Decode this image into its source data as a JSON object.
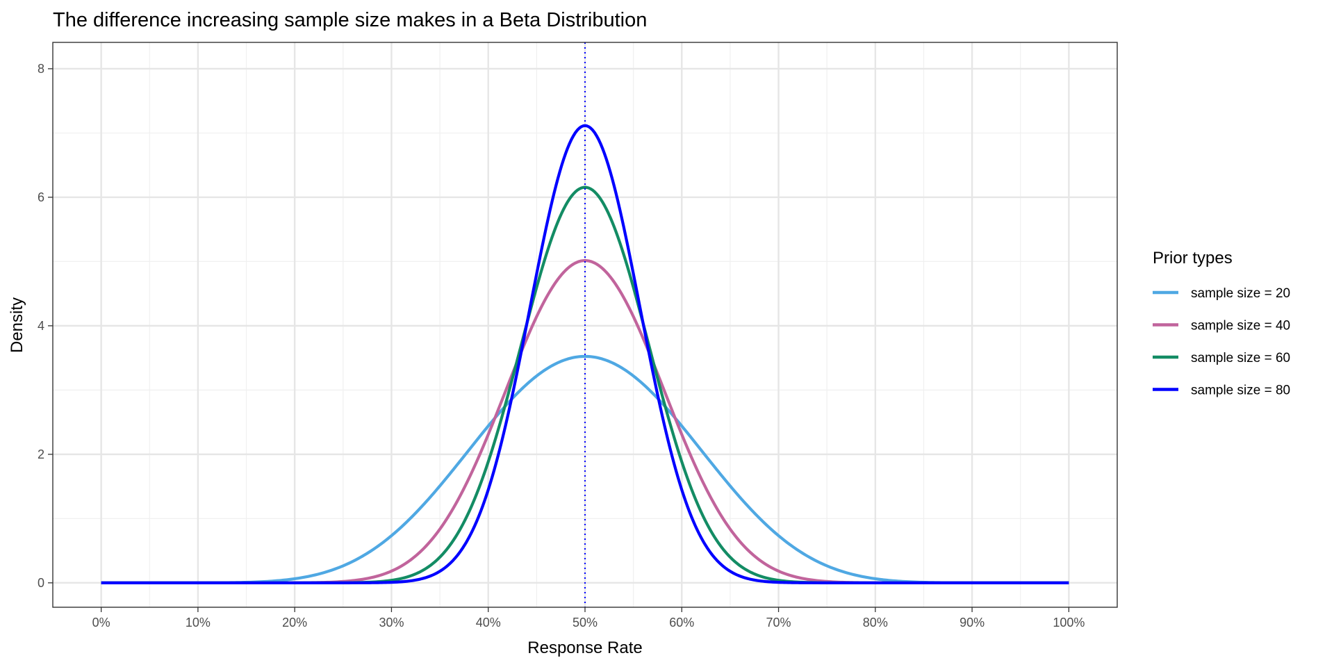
{
  "chart_data": {
    "type": "line",
    "title": "The difference increasing sample size makes in a Beta Distribution",
    "xlabel": "Response Rate",
    "ylabel": "Density",
    "xlim": [
      -0.05,
      1.05
    ],
    "ylim": [
      -0.38,
      8.41
    ],
    "x_ticks": [
      0,
      0.1,
      0.2,
      0.3,
      0.4,
      0.5,
      0.6,
      0.7,
      0.8,
      0.9,
      1.0
    ],
    "x_tick_labels": [
      "0%",
      "10%",
      "20%",
      "30%",
      "40%",
      "50%",
      "60%",
      "70%",
      "80%",
      "90%",
      "100%"
    ],
    "y_ticks": [
      0,
      2,
      4,
      6,
      8
    ],
    "y_tick_labels": [
      "0",
      "2",
      "4",
      "6",
      "8"
    ],
    "grid": true,
    "legend": {
      "title": "Prior types",
      "placement": "right"
    },
    "reference_line": {
      "x": 0.5,
      "style": "dotted",
      "color": "#0000FF"
    },
    "series": [
      {
        "name": "sample size = 20",
        "distribution": "beta",
        "alpha": 10,
        "beta": 10,
        "peak_density": 3.52,
        "color": "#4FA8E3"
      },
      {
        "name": "sample size = 40",
        "distribution": "beta",
        "alpha": 20,
        "beta": 20,
        "peak_density": 5.01,
        "color": "#C1649C"
      },
      {
        "name": "sample size = 60",
        "distribution": "beta",
        "alpha": 30,
        "beta": 30,
        "peak_density": 6.15,
        "color": "#138C64"
      },
      {
        "name": "sample size = 80",
        "distribution": "beta",
        "alpha": 40,
        "beta": 40,
        "peak_density": 7.11,
        "color": "#0000FF"
      }
    ]
  }
}
